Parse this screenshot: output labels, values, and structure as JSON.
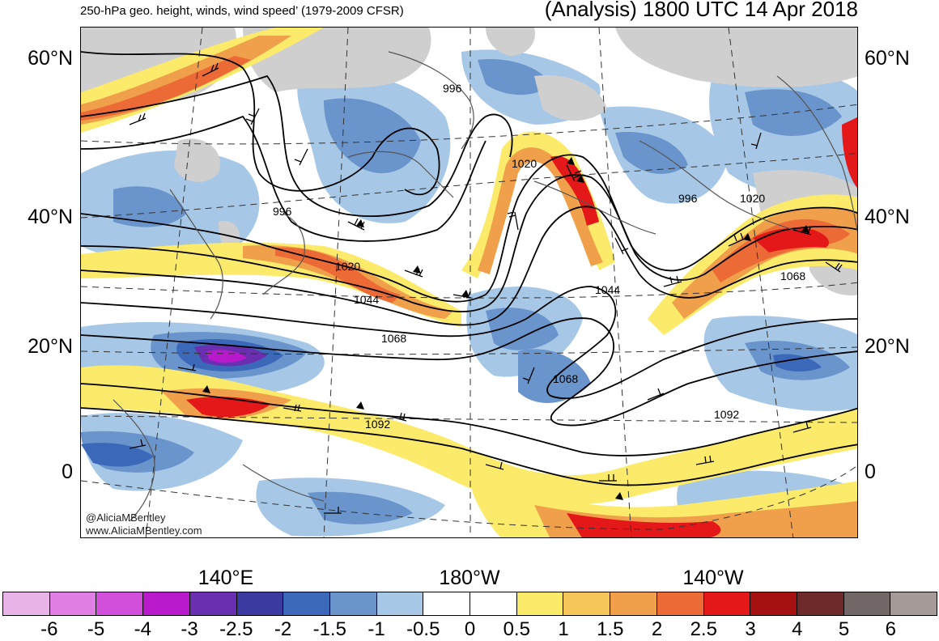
{
  "header": {
    "subtitle": "250-hPa geo. height, winds, wind speed’ (1979-2009 CFSR)",
    "title": "(Analysis) 1800 UTC 14 Apr 2018"
  },
  "axes": {
    "lat_labels": [
      "60°N",
      "40°N",
      "20°N",
      "0"
    ],
    "lon_labels": [
      "140°E",
      "180°W",
      "140°W"
    ]
  },
  "contour_labels": [
    "996",
    "996",
    "996",
    "1020",
    "1020",
    "1020",
    "1044",
    "1044",
    "1068",
    "1068",
    "1068",
    "1092",
    "1092"
  ],
  "credits": {
    "handle": "@AliciaMBentley",
    "website": "www.AliciaMBentley.com"
  },
  "legend": {
    "colors": [
      "#e8b4e8",
      "#e07ee6",
      "#d24fdc",
      "#b81acb",
      "#6a2fb0",
      "#3a3aa0",
      "#3b68b8",
      "#6a94cc",
      "#a6c8e6",
      "#ffffff",
      "#ffffff",
      "#fcea6a",
      "#f6c65a",
      "#f0a04a",
      "#ec6a36",
      "#e41818",
      "#a41010",
      "#6e2a2a",
      "#706766",
      "#a69a98"
    ],
    "labels": [
      "-6",
      "-5",
      "-4",
      "-3",
      "-2.5",
      "-2",
      "-1.5",
      "-1",
      "-0.5",
      "0",
      "0.5",
      "1",
      "1.5",
      "2",
      "2.5",
      "3",
      "4",
      "5",
      "6"
    ]
  }
}
